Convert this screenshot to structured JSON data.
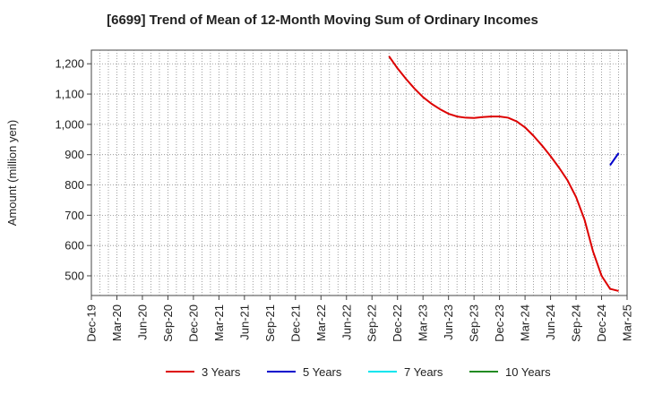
{
  "title": "[6699]  Trend of Mean of 12-Month Moving Sum of Ordinary Incomes",
  "chart_data": {
    "type": "line",
    "title": "[6699]  Trend of Mean of 12-Month Moving Sum of Ordinary Incomes",
    "xlabel": "",
    "ylabel": "Amount (million yen)",
    "ylim": [
      435,
      1245
    ],
    "y_ticks": [
      500,
      600,
      700,
      800,
      900,
      1000,
      1100,
      1200
    ],
    "y_tick_labels": [
      "500",
      "600",
      "700",
      "800",
      "900",
      "1,000",
      "1,100",
      "1,200"
    ],
    "x_tick_labels": [
      "Dec-19",
      "Mar-20",
      "Jun-20",
      "Sep-20",
      "Dec-20",
      "Mar-21",
      "Jun-21",
      "Sep-21",
      "Dec-21",
      "Mar-22",
      "Jun-22",
      "Sep-22",
      "Dec-22",
      "Mar-23",
      "Jun-23",
      "Sep-23",
      "Dec-23",
      "Mar-24",
      "Jun-24",
      "Sep-24",
      "Dec-24",
      "Mar-25"
    ],
    "x_range": [
      "2019-12",
      "2025-03"
    ],
    "grid": true,
    "legend_placement": "bottom",
    "series": [
      {
        "name": "3 Years",
        "color": "#dd0000",
        "points": [
          [
            "2022-11",
            1225
          ],
          [
            "2022-12",
            1185
          ],
          [
            "2023-01",
            1150
          ],
          [
            "2023-02",
            1118
          ],
          [
            "2023-03",
            1090
          ],
          [
            "2023-04",
            1068
          ],
          [
            "2023-05",
            1050
          ],
          [
            "2023-06",
            1035
          ],
          [
            "2023-07",
            1026
          ],
          [
            "2023-08",
            1022
          ],
          [
            "2023-09",
            1021
          ],
          [
            "2023-10",
            1024
          ],
          [
            "2023-11",
            1026
          ],
          [
            "2023-12",
            1026
          ],
          [
            "2024-01",
            1022
          ],
          [
            "2024-02",
            1010
          ],
          [
            "2024-03",
            990
          ],
          [
            "2024-04",
            962
          ],
          [
            "2024-05",
            930
          ],
          [
            "2024-06",
            895
          ],
          [
            "2024-07",
            857
          ],
          [
            "2024-08",
            815
          ],
          [
            "2024-09",
            760
          ],
          [
            "2024-10",
            685
          ],
          [
            "2024-11",
            580
          ],
          [
            "2024-12",
            500
          ],
          [
            "2025-01",
            457
          ],
          [
            "2025-02",
            450
          ]
        ]
      },
      {
        "name": "5 Years",
        "color": "#0000cc",
        "points": [
          [
            "2025-01",
            865
          ],
          [
            "2025-02",
            905
          ]
        ]
      },
      {
        "name": "7 Years",
        "color": "#00e5ee",
        "points": []
      },
      {
        "name": "10 Years",
        "color": "#228b22",
        "points": []
      }
    ]
  }
}
